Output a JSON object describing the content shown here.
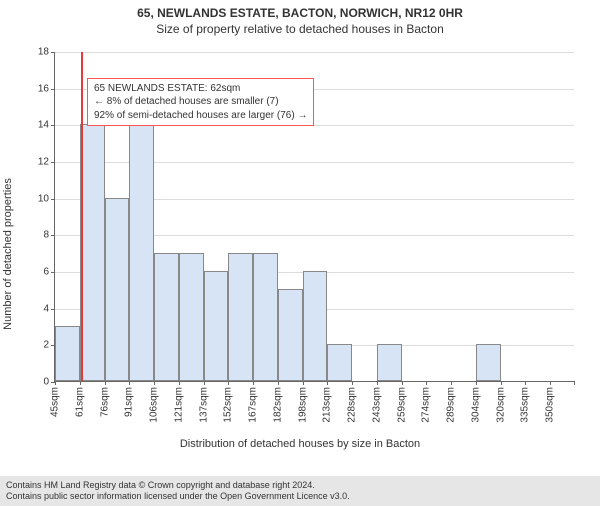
{
  "title_main": "65, NEWLANDS ESTATE, BACTON, NORWICH, NR12 0HR",
  "title_sub": "Size of property relative to detached houses in Bacton",
  "y_axis_label": "Number of detached properties",
  "x_axis_label": "Distribution of detached houses by size in Bacton",
  "chart": {
    "type": "histogram",
    "ylim_min": 0,
    "ylim_max": 18,
    "ytick_step": 2,
    "bar_color": "#d6e4f5",
    "bar_border_color": "#888888",
    "grid_color": "#dcdcdc",
    "axis_color": "#666666",
    "ref_line_color": "#e63939",
    "ref_line_x_index": 1.05,
    "categories": [
      "45sqm",
      "61sqm",
      "76sqm",
      "91sqm",
      "106sqm",
      "121sqm",
      "137sqm",
      "152sqm",
      "167sqm",
      "182sqm",
      "198sqm",
      "213sqm",
      "228sqm",
      "243sqm",
      "259sqm",
      "274sqm",
      "289sqm",
      "304sqm",
      "320sqm",
      "335sqm",
      "350sqm"
    ],
    "values": [
      3,
      14,
      10,
      16,
      7,
      7,
      6,
      7,
      7,
      5,
      6,
      2,
      0,
      2,
      0,
      0,
      0,
      2,
      0,
      0,
      0
    ]
  },
  "info_box": {
    "line1": "65 NEWLANDS ESTATE: 62sqm",
    "line2": "← 8% of detached houses are smaller (7)",
    "line3": "92% of semi-detached houses are larger (76) →",
    "border_color": "#ff5555"
  },
  "footer": {
    "line1": "Contains HM Land Registry data © Crown copyright and database right 2024.",
    "line2": "Contains public sector information licensed under the Open Government Licence v3.0.",
    "bg_color": "#e6e6e6"
  }
}
